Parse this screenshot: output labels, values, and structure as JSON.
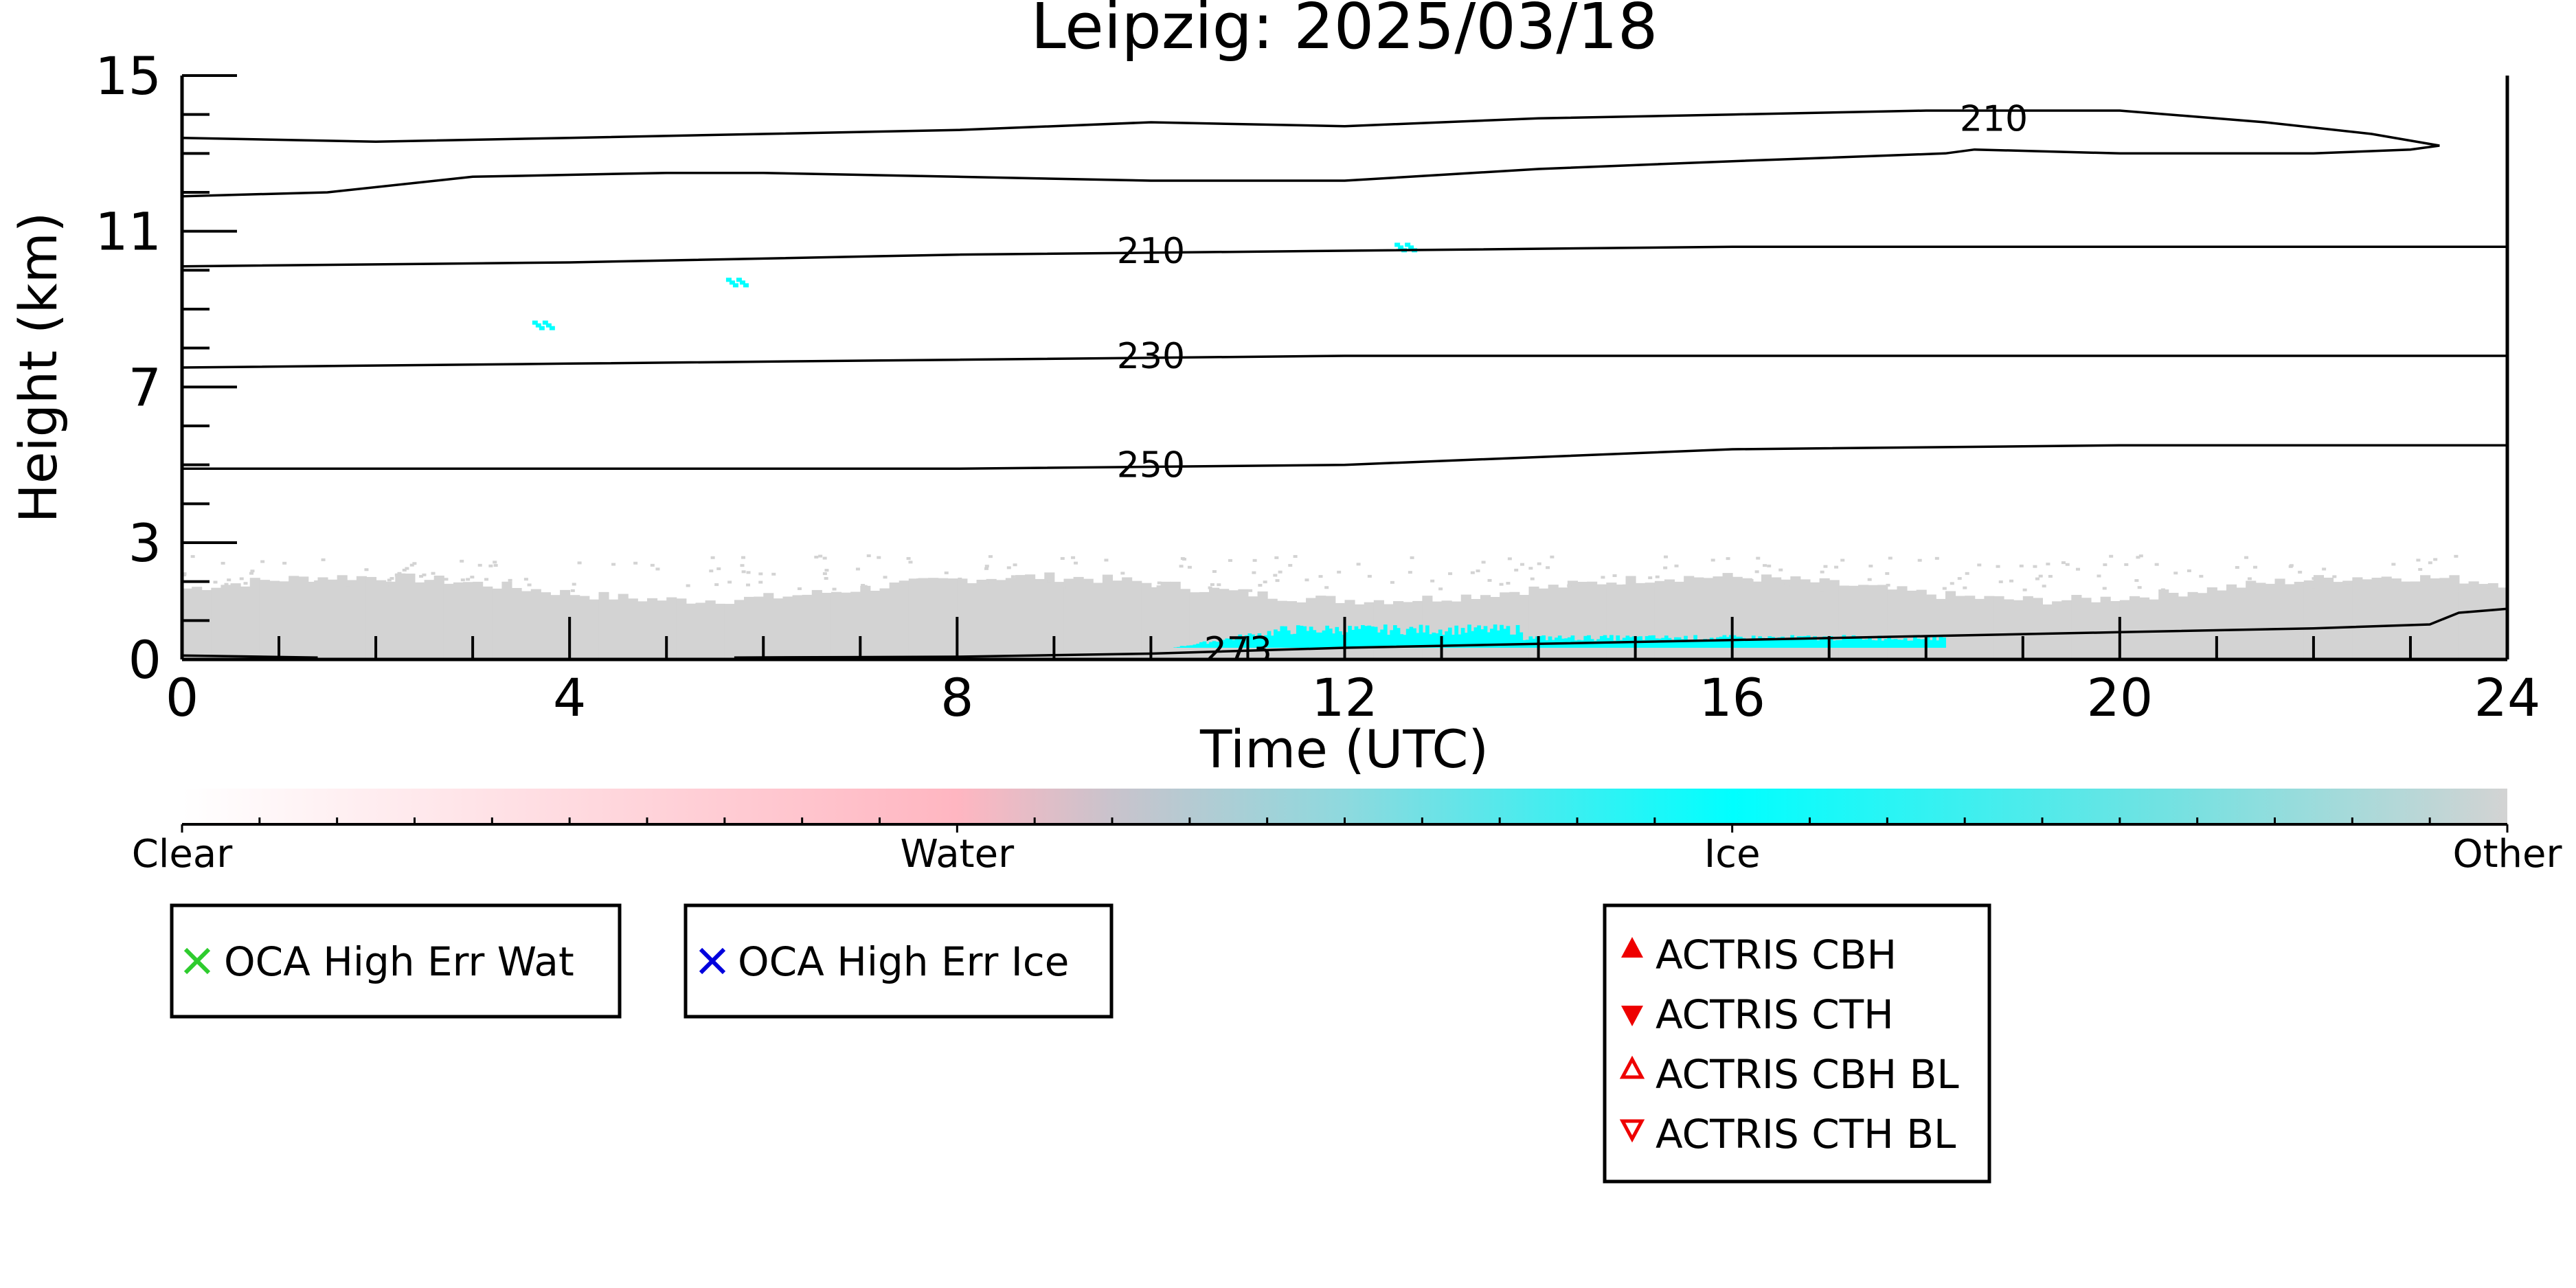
{
  "chart_data": {
    "type": "heatmap",
    "title": "Leipzig: 2025/03/18",
    "xlabel": "Time (UTC)",
    "ylabel": "Height (km)",
    "xlim": [
      0,
      24
    ],
    "ylim": [
      0,
      15
    ],
    "xticks": [
      "0",
      "4",
      "8",
      "12",
      "16",
      "20",
      "24"
    ],
    "yticks": [
      "0",
      "3",
      "7",
      "11",
      "15"
    ],
    "colorbar": {
      "labels": [
        "Clear",
        "Water",
        "Ice",
        "Other"
      ],
      "colors": [
        "#ffffff",
        "#ffb6c1",
        "#00ffff",
        "#d3d3d3"
      ]
    },
    "categories_observed": [
      {
        "name": "Other",
        "time_range": [
          0,
          24
        ],
        "height_range": [
          0,
          2.2
        ],
        "color": "#d3d3d3"
      },
      {
        "name": "Ice",
        "time_range": [
          10.2,
          18.2
        ],
        "height_range": [
          0.3,
          0.9
        ],
        "color": "#00ffff"
      },
      {
        "name": "Ice",
        "time": 3.7,
        "height": 8.6,
        "color": "#00ffff"
      },
      {
        "name": "Ice",
        "time": 5.7,
        "height": 9.7,
        "color": "#00ffff"
      },
      {
        "name": "Ice",
        "time": 12.6,
        "height": 10.6,
        "color": "#00ffff"
      }
    ],
    "contours": [
      {
        "label": "210",
        "label_at": [
          18.7,
          13.9
        ],
        "points": [
          [
            0,
            13.4
          ],
          [
            2,
            13.3
          ],
          [
            4,
            13.4
          ],
          [
            6,
            13.5
          ],
          [
            8,
            13.6
          ],
          [
            10,
            13.8
          ],
          [
            12,
            13.7
          ],
          [
            14,
            13.9
          ],
          [
            16,
            14.0
          ],
          [
            18,
            14.1
          ],
          [
            20,
            14.1
          ],
          [
            21.5,
            13.8
          ],
          [
            22.6,
            13.5
          ],
          [
            23.3,
            13.2
          ],
          [
            23.0,
            13.1
          ],
          [
            22,
            13.0
          ],
          [
            20,
            13.0
          ],
          [
            18.5,
            13.1
          ],
          [
            18.2,
            13.0
          ],
          [
            16,
            12.8
          ],
          [
            14,
            12.6
          ],
          [
            12,
            12.3
          ],
          [
            10,
            12.3
          ],
          [
            8,
            12.4
          ],
          [
            6,
            12.5
          ],
          [
            5,
            12.5
          ],
          [
            3,
            12.4
          ],
          [
            1.5,
            12.0
          ],
          [
            0,
            11.9
          ]
        ]
      },
      {
        "label": "210",
        "label_at": [
          10.0,
          10.5
        ],
        "points": [
          [
            0,
            10.1
          ],
          [
            4,
            10.2
          ],
          [
            8,
            10.4
          ],
          [
            12,
            10.5
          ],
          [
            16,
            10.6
          ],
          [
            20,
            10.6
          ],
          [
            24,
            10.6
          ]
        ]
      },
      {
        "label": "230",
        "label_at": [
          10.0,
          7.8
        ],
        "points": [
          [
            0,
            7.5
          ],
          [
            4,
            7.6
          ],
          [
            8,
            7.7
          ],
          [
            12,
            7.8
          ],
          [
            16,
            7.8
          ],
          [
            20,
            7.8
          ],
          [
            24,
            7.8
          ]
        ]
      },
      {
        "label": "250",
        "label_at": [
          10.0,
          5.0
        ],
        "points": [
          [
            0,
            4.9
          ],
          [
            4,
            4.9
          ],
          [
            8,
            4.9
          ],
          [
            12,
            5.0
          ],
          [
            16,
            5.4
          ],
          [
            20,
            5.5
          ],
          [
            24,
            5.5
          ]
        ]
      },
      {
        "label": "273",
        "label_at": [
          10.9,
          0.25
        ],
        "points": [
          [
            5.7,
            0.05
          ],
          [
            8,
            0.07
          ],
          [
            10,
            0.15
          ],
          [
            12,
            0.3
          ],
          [
            14,
            0.4
          ],
          [
            16,
            0.5
          ],
          [
            18,
            0.6
          ],
          [
            20,
            0.7
          ],
          [
            22,
            0.8
          ],
          [
            23.2,
            0.9
          ],
          [
            23.5,
            1.2
          ],
          [
            24,
            1.3
          ]
        ]
      },
      {
        "label": "",
        "label_at": null,
        "points": [
          [
            0,
            0.1
          ],
          [
            0.6,
            0.08
          ],
          [
            1.4,
            0.05
          ]
        ]
      }
    ]
  },
  "legends": {
    "oca_water": {
      "label": "OCA High Err Wat",
      "color": "#2ecc2e",
      "icon": "x-mark-icon"
    },
    "oca_ice": {
      "label": "OCA High Err Ice",
      "color": "#0000dd",
      "icon": "x-mark-icon"
    },
    "actris": [
      {
        "label": "ACTRIS CBH",
        "color": "#ee0000",
        "icon": "filled-up-triangle-icon"
      },
      {
        "label": "ACTRIS CTH",
        "color": "#ee0000",
        "icon": "filled-down-triangle-icon"
      },
      {
        "label": "ACTRIS CBH BL",
        "color": "#ee0000",
        "icon": "hollow-up-triangle-icon"
      },
      {
        "label": "ACTRIS CTH BL",
        "color": "#ee0000",
        "icon": "hollow-down-triangle-icon"
      }
    ]
  }
}
